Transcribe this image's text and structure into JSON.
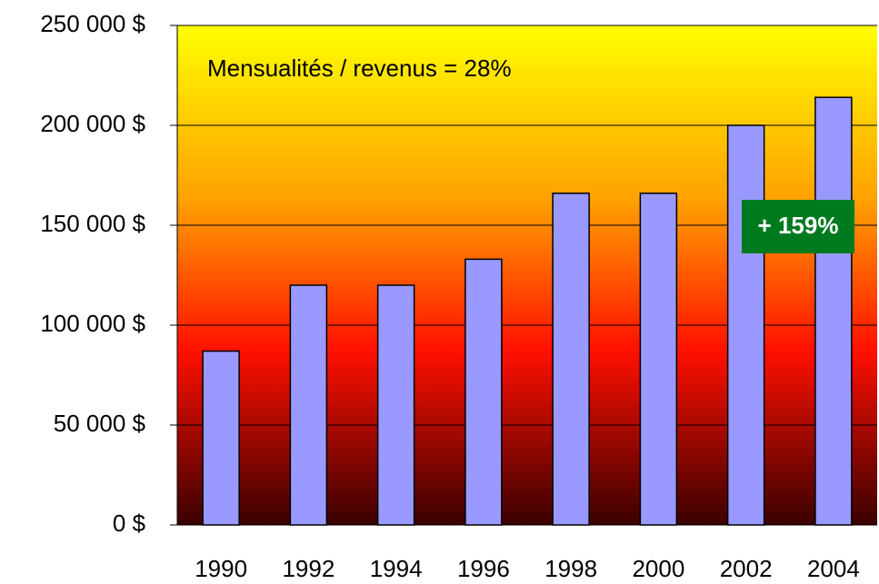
{
  "chart_data": {
    "type": "bar",
    "categories": [
      "1990",
      "1992",
      "1994",
      "1996",
      "1998",
      "2000",
      "2002",
      "2004"
    ],
    "values": [
      87000,
      120000,
      120000,
      133000,
      166000,
      166000,
      200000,
      214000
    ],
    "color": "#9999ff",
    "ylim": [
      0,
      250000
    ],
    "yticks": [
      {
        "value": 0,
        "label": "0 $"
      },
      {
        "value": 50000,
        "label": "50 000 $"
      },
      {
        "value": 100000,
        "label": "100 000 $"
      },
      {
        "value": 150000,
        "label": "150 000 $"
      },
      {
        "value": 200000,
        "label": "200 000 $"
      },
      {
        "value": 250000,
        "label": "250 000 $"
      }
    ],
    "grid": true,
    "annotations": [
      "Mensualités / revenus = 28%",
      "+ 159%"
    ]
  }
}
